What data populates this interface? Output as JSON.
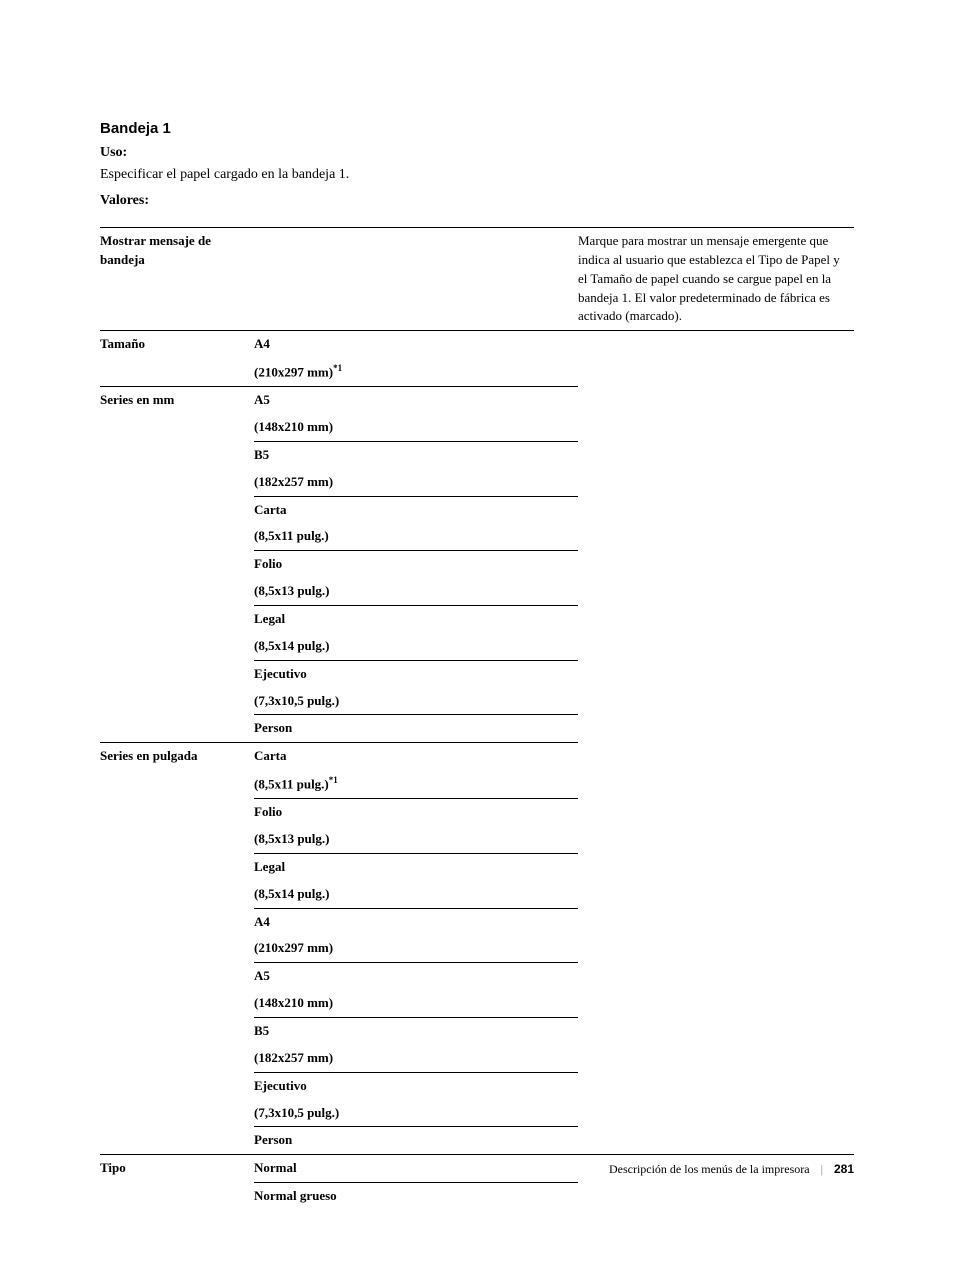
{
  "section": {
    "title": "Bandeja 1",
    "uso_label": "Uso:",
    "uso_text": "Especificar el papel cargado en la bandeja 1.",
    "valores_label": "Valores:"
  },
  "rows": {
    "mostrar": {
      "label": "Mostrar mensaje de bandeja",
      "desc": "Marque para mostrar un mensaje emergente que indica al usuario que establezca el Tipo de Papel y el Tamaño de papel cuando se cargue papel en la bandeja 1. El valor predeterminado de fábrica es activado (marcado)."
    },
    "tamano": {
      "label": "Tamaño",
      "a4_name": "A4",
      "a4_dim": "(210x297 mm)",
      "a4_sup": "*1"
    },
    "series_mm": {
      "label": "Series en mm",
      "a5_name": "A5",
      "a5_dim": "(148x210 mm)",
      "b5_name": "B5",
      "b5_dim": "(182x257 mm)",
      "carta_name": "Carta",
      "carta_dim": "(8,5x11 pulg.)",
      "folio_name": "Folio",
      "folio_dim": "(8,5x13 pulg.)",
      "legal_name": "Legal",
      "legal_dim": "(8,5x14 pulg.)",
      "ejec_name": "Ejecutivo",
      "ejec_dim": "(7,3x10,5 pulg.)",
      "person": "Person"
    },
    "series_in": {
      "label": "Series en pulgada",
      "carta_name": "Carta",
      "carta_dim": "(8,5x11 pulg.)",
      "carta_sup": "*1",
      "folio_name": "Folio",
      "folio_dim": "(8,5x13 pulg.)",
      "legal_name": "Legal",
      "legal_dim": "(8,5x14 pulg.)",
      "a4_name": "A4",
      "a4_dim": "(210x297 mm)",
      "a5_name": "A5",
      "a5_dim": "(148x210 mm)",
      "b5_name": "B5",
      "b5_dim": "(182x257 mm)",
      "ejec_name": "Ejecutivo",
      "ejec_dim": "(7,3x10,5 pulg.)",
      "person": "Person"
    },
    "tipo": {
      "label": "Tipo",
      "normal": "Normal",
      "normal_grueso": "Normal grueso"
    }
  },
  "footer": {
    "text": "Descripción de los menús de la impresora",
    "page": "281"
  }
}
